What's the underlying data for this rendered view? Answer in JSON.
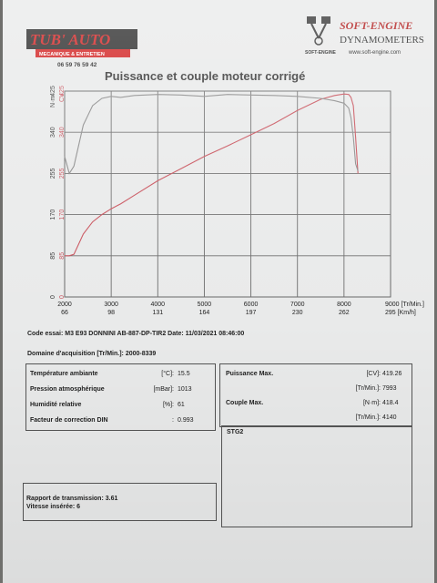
{
  "header": {
    "tub_logo": {
      "line1": "TUB' AUTO",
      "line2": "MECANIQUE & ENTRETIEN",
      "phone": "06 59 76 59 42"
    },
    "soft_logo": {
      "brand": "SOFT-ENGINE",
      "product": "DYNAMOMETERS",
      "url": "www.soft-engine.com",
      "mini": "SOFT-ENGINE"
    }
  },
  "chart_data": {
    "type": "line",
    "title": "Puissance et couple moteur corrigé",
    "x": [
      2000,
      2100,
      2200,
      2400,
      2600,
      2800,
      3000,
      3200,
      3500,
      4000,
      4500,
      5000,
      5500,
      6000,
      6500,
      7000,
      7500,
      7800,
      8000,
      8100,
      8150,
      8200,
      8250,
      8300
    ],
    "series": [
      {
        "name": "CV",
        "color": "#c8505a",
        "values": [
          85,
          85,
          88,
          130,
          155,
          170,
          182,
          192,
          210,
          240,
          265,
          290,
          312,
          335,
          358,
          385,
          408,
          416,
          419,
          418,
          412,
          395,
          330,
          255
        ]
      },
      {
        "name": "N·m",
        "color": "#8a8a8a",
        "values": [
          290,
          255,
          270,
          355,
          395,
          410,
          414,
          412,
          416,
          418,
          417,
          414,
          418,
          417,
          416,
          414,
          410,
          405,
          400,
          390,
          370,
          330,
          275,
          260
        ]
      }
    ],
    "xlim": [
      2000,
      9000
    ],
    "ylim": [
      0,
      425
    ],
    "x_ticks": [
      2000,
      3000,
      4000,
      5000,
      6000,
      7000,
      8000,
      9000
    ],
    "x_tick_labels": [
      "2000",
      "3000",
      "4000",
      "5000",
      "6000",
      "7000",
      "8000",
      "9000 [Tr/Min.]"
    ],
    "speed_tick_labels": [
      "66",
      "98",
      "131",
      "164",
      "197",
      "230",
      "262",
      "295 [Km/h]"
    ],
    "y_ticks": [
      0,
      85,
      170,
      255,
      340,
      425
    ],
    "y_unit_nm": "N·m",
    "y_unit_cv": "CV",
    "grid": true
  },
  "info": {
    "code_essai": "Code essai: M3 E93 DONNINI AB-887-DP-TIR2  Date: 11/03/2021 08:46:00",
    "domaine": "Domaine d'acquisition [Tr/Min.]: 2000-8339"
  },
  "conditions": {
    "rows": [
      {
        "label": "Température ambiante",
        "unit": "[°C]:",
        "value": "15.5"
      },
      {
        "label": "Pression atmosphérique",
        "unit": "[mBar]:",
        "value": "1013"
      },
      {
        "label": "Humidité relative",
        "unit": "[%]:",
        "value": "61"
      },
      {
        "label": "Facteur de correction DIN",
        "unit": ":",
        "value": "0.993"
      }
    ]
  },
  "results": {
    "rows": [
      {
        "label": "Puissance Max.",
        "unit": "[CV]:",
        "value": "419.26"
      },
      {
        "label": "",
        "unit": "[Tr/Min.]:",
        "value": "7993"
      },
      {
        "label": "Couple Max.",
        "unit": "[N·m]:",
        "value": "418.4"
      },
      {
        "label": "",
        "unit": "[Tr/Min.]:",
        "value": "4140"
      }
    ]
  },
  "notes": {
    "stage": "STG2"
  },
  "transmission": {
    "rapport": "Rapport de transmission: 3.61",
    "vitesse": "Vitesse insérée: 6"
  }
}
